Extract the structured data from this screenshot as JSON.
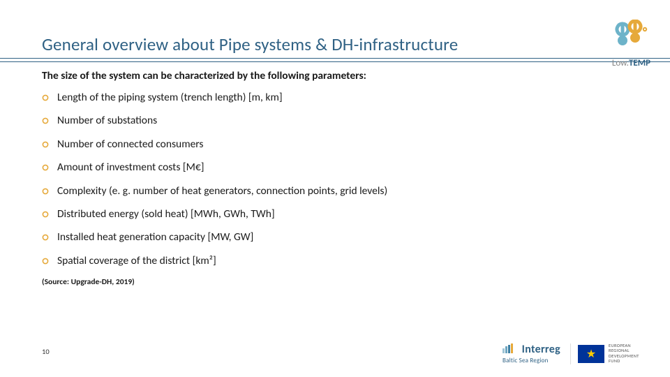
{
  "title": "General overview about Pipe systems & DH-infrastructure",
  "subtitle": "The size of the system can be characterized by the following parameters:",
  "bullets": [
    "Length of the piping system (trench length) [m, km]",
    "Number of substations",
    "Number of connected consumers",
    "Amount of investment costs [M€]",
    "Complexity (e. g. number of heat generators, connection points, grid levels)",
    "Distributed energy (sold heat) [MWh, GWh, TWh]",
    "Installed heat generation capacity [MW, GW]",
    "Spatial coverage of the district [km²]"
  ],
  "source": "(Source: Upgrade-DH, 2019)",
  "page_number": "10",
  "logo": {
    "low": "Low",
    "temp": "TEMP"
  },
  "interreg": {
    "name": "Interreg",
    "sub": "Baltic Sea Region"
  },
  "eu_text": "EUROPEAN REGIONAL DEVELOPMENT FUND",
  "colors": {
    "title": "#2f6184",
    "bullet_ring": "#e6a93a",
    "bullet_fill": "#ffffff",
    "logo_blue": "#6db3c9",
    "logo_yellow": "#e6a93a",
    "rule": "#2f6184"
  }
}
